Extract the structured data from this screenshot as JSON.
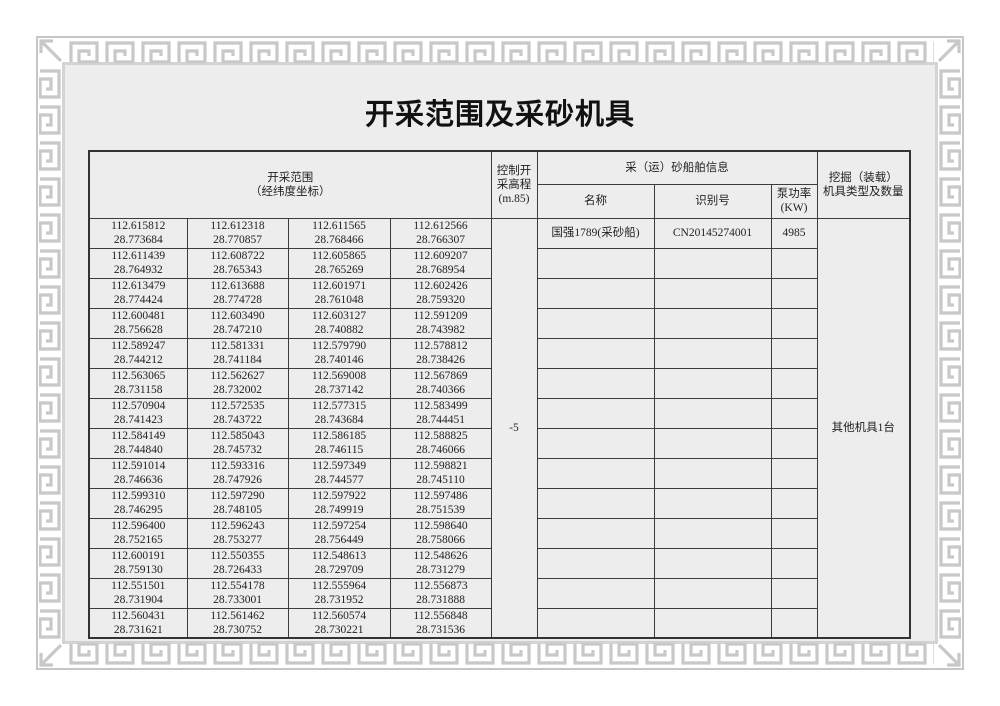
{
  "page": {
    "title": "开采范围及采砂机具"
  },
  "colors": {
    "page_background": "#ffffff",
    "content_background": "#ededed",
    "border_pattern_gray": "#c8c8c8",
    "table_line": "#3c3c3c",
    "text": "#1f1f1f"
  },
  "table": {
    "headers": {
      "range": "开采范围",
      "range_sub": "（经纬度坐标）",
      "elevation_l1": "控制开",
      "elevation_l2": "采高程",
      "elevation_l3": "(m.85)",
      "ship_info": "采（运）砂船舶信息",
      "name": "名称",
      "id": "识别号",
      "pump_l1": "泵功率",
      "pump_l2": "(KW)",
      "equipment_l1": "挖掘（装载）",
      "equipment_l2": "机具类型及数量"
    },
    "elevation_value": "-5",
    "equipment_value": "其他机具1台",
    "ship_rows": [
      {
        "name": "国强1789(采砂船)",
        "id": "CN20145274001",
        "pump": "4985"
      },
      {
        "name": "",
        "id": "",
        "pump": ""
      },
      {
        "name": "",
        "id": "",
        "pump": ""
      },
      {
        "name": "",
        "id": "",
        "pump": ""
      },
      {
        "name": "",
        "id": "",
        "pump": ""
      },
      {
        "name": "",
        "id": "",
        "pump": ""
      },
      {
        "name": "",
        "id": "",
        "pump": ""
      },
      {
        "name": "",
        "id": "",
        "pump": ""
      },
      {
        "name": "",
        "id": "",
        "pump": ""
      },
      {
        "name": "",
        "id": "",
        "pump": ""
      },
      {
        "name": "",
        "id": "",
        "pump": ""
      },
      {
        "name": "",
        "id": "",
        "pump": ""
      },
      {
        "name": "",
        "id": "",
        "pump": ""
      },
      {
        "name": "",
        "id": "",
        "pump": ""
      }
    ],
    "coordinate_rows": [
      [
        [
          "112.615812",
          "28.773684"
        ],
        [
          "112.612318",
          "28.770857"
        ],
        [
          "112.611565",
          "28.768466"
        ],
        [
          "112.612566",
          "28.766307"
        ]
      ],
      [
        [
          "112.611439",
          "28.764932"
        ],
        [
          "112.608722",
          "28.765343"
        ],
        [
          "112.605865",
          "28.765269"
        ],
        [
          "112.609207",
          "28.768954"
        ]
      ],
      [
        [
          "112.613479",
          "28.774424"
        ],
        [
          "112.613688",
          "28.774728"
        ],
        [
          "112.601971",
          "28.761048"
        ],
        [
          "112.602426",
          "28.759320"
        ]
      ],
      [
        [
          "112.600481",
          "28.756628"
        ],
        [
          "112.603490",
          "28.747210"
        ],
        [
          "112.603127",
          "28.740882"
        ],
        [
          "112.591209",
          "28.743982"
        ]
      ],
      [
        [
          "112.589247",
          "28.744212"
        ],
        [
          "112.581331",
          "28.741184"
        ],
        [
          "112.579790",
          "28.740146"
        ],
        [
          "112.578812",
          "28.738426"
        ]
      ],
      [
        [
          "112.563065",
          "28.731158"
        ],
        [
          "112.562627",
          "28.732002"
        ],
        [
          "112.569008",
          "28.737142"
        ],
        [
          "112.567869",
          "28.740366"
        ]
      ],
      [
        [
          "112.570904",
          "28.741423"
        ],
        [
          "112.572535",
          "28.743722"
        ],
        [
          "112.577315",
          "28.743684"
        ],
        [
          "112.583499",
          "28.744451"
        ]
      ],
      [
        [
          "112.584149",
          "28.744840"
        ],
        [
          "112.585043",
          "28.745732"
        ],
        [
          "112.586185",
          "28.746115"
        ],
        [
          "112.588825",
          "28.746066"
        ]
      ],
      [
        [
          "112.591014",
          "28.746636"
        ],
        [
          "112.593316",
          "28.747926"
        ],
        [
          "112.597349",
          "28.744577"
        ],
        [
          "112.598821",
          "28.745110"
        ]
      ],
      [
        [
          "112.599310",
          "28.746295"
        ],
        [
          "112.597290",
          "28.748105"
        ],
        [
          "112.597922",
          "28.749919"
        ],
        [
          "112.597486",
          "28.751539"
        ]
      ],
      [
        [
          "112.596400",
          "28.752165"
        ],
        [
          "112.596243",
          "28.753277"
        ],
        [
          "112.597254",
          "28.756449"
        ],
        [
          "112.598640",
          "28.758066"
        ]
      ],
      [
        [
          "112.600191",
          "28.759130"
        ],
        [
          "112.550355",
          "28.726433"
        ],
        [
          "112.548613",
          "28.729709"
        ],
        [
          "112.548626",
          "28.731279"
        ]
      ],
      [
        [
          "112.551501",
          "28.731904"
        ],
        [
          "112.554178",
          "28.733001"
        ],
        [
          "112.555964",
          "28.731952"
        ],
        [
          "112.556873",
          "28.731888"
        ]
      ],
      [
        [
          "112.560431",
          "28.731621"
        ],
        [
          "112.561462",
          "28.730752"
        ],
        [
          "112.560574",
          "28.730221"
        ],
        [
          "112.556848",
          "28.731536"
        ]
      ]
    ]
  }
}
